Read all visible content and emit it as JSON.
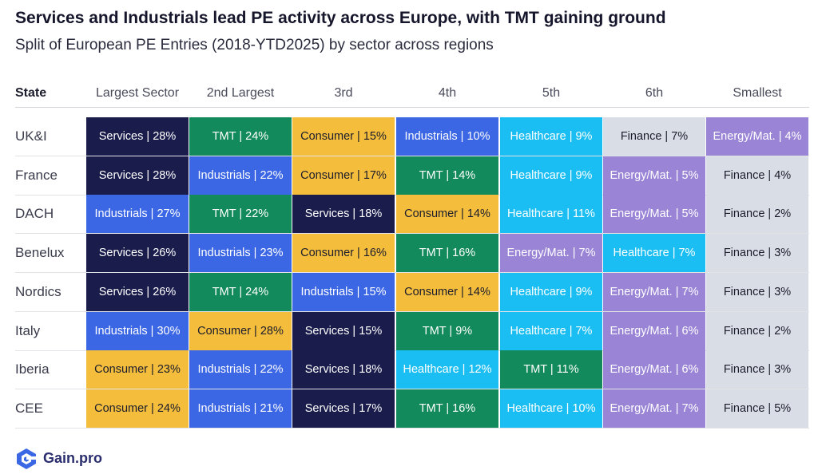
{
  "title": "Services and Industrials lead PE activity across Europe, with TMT gaining ground",
  "subtitle": "Split of European PE Entries (2018-YTD2025) by sector across regions",
  "brand": "Gain.pro",
  "colors": {
    "Services": "#1a1c4c",
    "Industrials": "#3b66e4",
    "TMT": "#138a5b",
    "Consumer": "#f4bd3c",
    "Healthcare": "#1bbef2",
    "Energy/Mat.": "#9a84d6",
    "Finance": "#d9dde5",
    "brand": "#3b66e4"
  },
  "chart_data": {
    "type": "table",
    "columns": [
      "State",
      "Largest Sector",
      "2nd Largest",
      "3rd",
      "4th",
      "5th",
      "6th",
      "Smallest"
    ],
    "rows": [
      {
        "region": "UK&I",
        "cells": [
          {
            "sector": "Services",
            "value": 28,
            "label": "Services | 28%"
          },
          {
            "sector": "TMT",
            "value": 24,
            "label": "TMT | 24%"
          },
          {
            "sector": "Consumer",
            "value": 15,
            "label": "Consumer | 15%"
          },
          {
            "sector": "Industrials",
            "value": 10,
            "label": "Industrials | 10%"
          },
          {
            "sector": "Healthcare",
            "value": 9,
            "label": "Healthcare | 9%"
          },
          {
            "sector": "Finance",
            "value": 7,
            "label": "Finance | 7%"
          },
          {
            "sector": "Energy/Mat.",
            "value": 4,
            "label": "Energy/Mat. | 4%"
          }
        ]
      },
      {
        "region": "France",
        "cells": [
          {
            "sector": "Services",
            "value": 28,
            "label": "Services | 28%"
          },
          {
            "sector": "Industrials",
            "value": 22,
            "label": "Industrials | 22%"
          },
          {
            "sector": "Consumer",
            "value": 17,
            "label": "Consumer | 17%"
          },
          {
            "sector": "TMT",
            "value": 14,
            "label": "TMT | 14%"
          },
          {
            "sector": "Healthcare",
            "value": 9,
            "label": "Healthcare | 9%"
          },
          {
            "sector": "Energy/Mat.",
            "value": 5,
            "label": "Energy/Mat. | 5%"
          },
          {
            "sector": "Finance",
            "value": 4,
            "label": "Finance | 4%"
          }
        ]
      },
      {
        "region": "DACH",
        "cells": [
          {
            "sector": "Industrials",
            "value": 27,
            "label": "Industrials | 27%"
          },
          {
            "sector": "TMT",
            "value": 22,
            "label": "TMT | 22%"
          },
          {
            "sector": "Services",
            "value": 18,
            "label": "Services | 18%"
          },
          {
            "sector": "Consumer",
            "value": 14,
            "label": "Consumer | 14%"
          },
          {
            "sector": "Healthcare",
            "value": 11,
            "label": "Healthcare | 11%"
          },
          {
            "sector": "Energy/Mat.",
            "value": 5,
            "label": "Energy/Mat. | 5%"
          },
          {
            "sector": "Finance",
            "value": 2,
            "label": "Finance | 2%"
          }
        ]
      },
      {
        "region": "Benelux",
        "cells": [
          {
            "sector": "Services",
            "value": 26,
            "label": "Services | 26%"
          },
          {
            "sector": "Industrials",
            "value": 23,
            "label": "Industrials | 23%"
          },
          {
            "sector": "Consumer",
            "value": 16,
            "label": "Consumer | 16%"
          },
          {
            "sector": "TMT",
            "value": 16,
            "label": "TMT | 16%"
          },
          {
            "sector": "Energy/Mat.",
            "value": 7,
            "label": "Energy/Mat. | 7%"
          },
          {
            "sector": "Healthcare",
            "value": 7,
            "label": "Healthcare | 7%"
          },
          {
            "sector": "Finance",
            "value": 3,
            "label": "Finance | 3%"
          }
        ]
      },
      {
        "region": "Nordics",
        "cells": [
          {
            "sector": "Services",
            "value": 26,
            "label": "Services | 26%"
          },
          {
            "sector": "TMT",
            "value": 24,
            "label": "TMT | 24%"
          },
          {
            "sector": "Industrials",
            "value": 15,
            "label": "Industrials | 15%"
          },
          {
            "sector": "Consumer",
            "value": 14,
            "label": "Consumer | 14%"
          },
          {
            "sector": "Healthcare",
            "value": 9,
            "label": "Healthcare | 9%"
          },
          {
            "sector": "Energy/Mat.",
            "value": 7,
            "label": "Energy/Mat. | 7%"
          },
          {
            "sector": "Finance",
            "value": 3,
            "label": "Finance | 3%"
          }
        ]
      },
      {
        "region": "Italy",
        "cells": [
          {
            "sector": "Industrials",
            "value": 30,
            "label": "Industrials | 30%"
          },
          {
            "sector": "Consumer",
            "value": 28,
            "label": "Consumer | 28%"
          },
          {
            "sector": "Services",
            "value": 15,
            "label": "Services | 15%"
          },
          {
            "sector": "TMT",
            "value": 9,
            "label": "TMT | 9%"
          },
          {
            "sector": "Healthcare",
            "value": 7,
            "label": "Healthcare | 7%"
          },
          {
            "sector": "Energy/Mat.",
            "value": 6,
            "label": "Energy/Mat. | 6%"
          },
          {
            "sector": "Finance",
            "value": 2,
            "label": "Finance | 2%"
          }
        ]
      },
      {
        "region": "Iberia",
        "cells": [
          {
            "sector": "Consumer",
            "value": 23,
            "label": "Consumer | 23%"
          },
          {
            "sector": "Industrials",
            "value": 22,
            "label": "Industrials | 22%"
          },
          {
            "sector": "Services",
            "value": 18,
            "label": "Services | 18%"
          },
          {
            "sector": "Healthcare",
            "value": 12,
            "label": "Healthcare | 12%"
          },
          {
            "sector": "TMT",
            "value": 11,
            "label": "TMT | 11%"
          },
          {
            "sector": "Energy/Mat.",
            "value": 6,
            "label": "Energy/Mat. | 6%"
          },
          {
            "sector": "Finance",
            "value": 3,
            "label": "Finance | 3%"
          }
        ]
      },
      {
        "region": "CEE",
        "cells": [
          {
            "sector": "Consumer",
            "value": 24,
            "label": "Consumer | 24%"
          },
          {
            "sector": "Industrials",
            "value": 21,
            "label": "Industrials | 21%"
          },
          {
            "sector": "Services",
            "value": 17,
            "label": "Services | 17%"
          },
          {
            "sector": "TMT",
            "value": 16,
            "label": "TMT | 16%"
          },
          {
            "sector": "Healthcare",
            "value": 10,
            "label": "Healthcare | 10%"
          },
          {
            "sector": "Energy/Mat.",
            "value": 7,
            "label": "Energy/Mat. | 7%"
          },
          {
            "sector": "Finance",
            "value": 5,
            "label": "Finance | 5%"
          }
        ]
      }
    ]
  }
}
